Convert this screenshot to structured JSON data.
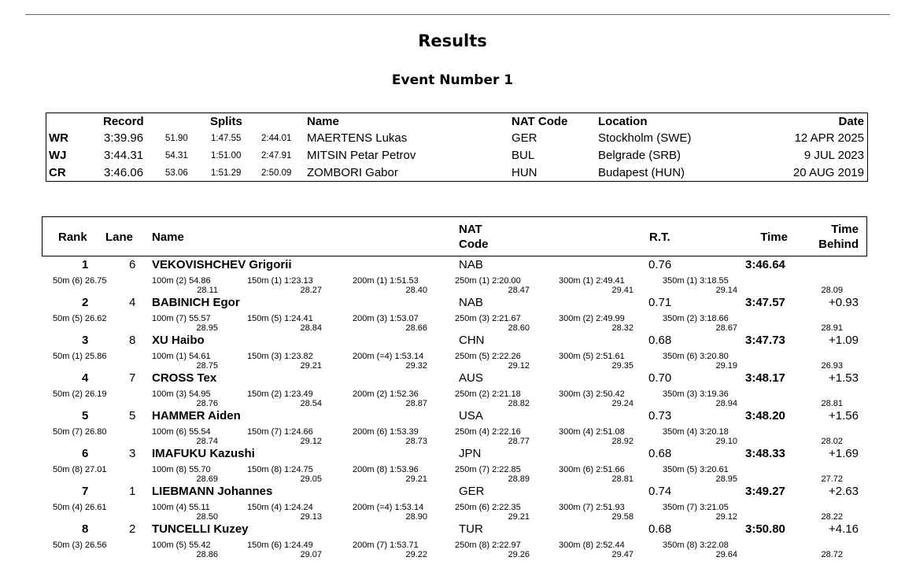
{
  "header": {
    "title": "Results",
    "event": "Event Number 1"
  },
  "records": {
    "headers": {
      "record": "Record",
      "splits": "Splits",
      "name": "Name",
      "nat": "NAT Code",
      "location": "Location",
      "date": "Date"
    },
    "rows": [
      {
        "type": "WR",
        "time": "3:39.96",
        "s1": "51.90",
        "s2": "1:47.55",
        "s3": "2:44.01",
        "name": "MAERTENS Lukas",
        "nat": "GER",
        "location": "Stockholm (SWE)",
        "date": "12 APR 2025"
      },
      {
        "type": "WJ",
        "time": "3:44.31",
        "s1": "54.31",
        "s2": "1:51.00",
        "s3": "2:47.91",
        "name": "MITSIN Petar Petrov",
        "nat": "BUL",
        "location": "Belgrade (SRB)",
        "date": "9 JUL 2023"
      },
      {
        "type": "CR",
        "time": "3:46.06",
        "s1": "53.06",
        "s2": "1:51.29",
        "s3": "2:50.09",
        "name": "ZOMBORI Gabor",
        "nat": "HUN",
        "location": "Budapest (HUN)",
        "date": "20 AUG 2019"
      }
    ]
  },
  "results": {
    "headers": {
      "rank": "Rank",
      "lane": "Lane",
      "name": "Name",
      "nat1": "NAT",
      "nat2": "Code",
      "rt": "R.T.",
      "time": "Time",
      "behind1": "Time",
      "behind2": "Behind"
    },
    "rows": [
      {
        "rank": "1",
        "lane": "6",
        "name": "VEKOVISHCHEV Grigorii",
        "nat": "NAB",
        "rt": "0.76",
        "time": "3:46.64",
        "behind": "",
        "s50": "50m  (6) 26.75",
        "s100": "100m  (2) 54.86",
        "d100": "28.11",
        "s150": "150m  (1) 1:23.13",
        "d150": "28.27",
        "s200": "200m  (1) 1:51.53",
        "d200": "28.40",
        "s250": "250m  (1) 2:20.00",
        "d250": "28.47",
        "s300": "300m  (1) 2:49.41",
        "d300": "29.41",
        "s350": "350m  (1) 3:18.55",
        "d350": "29.14",
        "d400": "28.09"
      },
      {
        "rank": "2",
        "lane": "4",
        "name": "BABINICH Egor",
        "nat": "NAB",
        "rt": "0.71",
        "time": "3:47.57",
        "behind": "+0.93",
        "s50": "50m  (5) 26.62",
        "s100": "100m  (7) 55.57",
        "d100": "28.95",
        "s150": "150m  (5) 1:24.41",
        "d150": "28.84",
        "s200": "200m  (3) 1:53.07",
        "d200": "28.66",
        "s250": "250m  (3) 2:21.67",
        "d250": "28.60",
        "s300": "300m  (2) 2:49.99",
        "d300": "28.32",
        "s350": "350m  (2) 3:18.66",
        "d350": "28.67",
        "d400": "28.91"
      },
      {
        "rank": "3",
        "lane": "8",
        "name": "XU Haibo",
        "nat": "CHN",
        "rt": "0.68",
        "time": "3:47.73",
        "behind": "+1.09",
        "s50": "50m  (1) 25.86",
        "s100": "100m  (1) 54.61",
        "d100": "28.75",
        "s150": "150m  (3) 1:23.82",
        "d150": "29.21",
        "s200": "200m  (=4) 1:53.14",
        "d200": "29.32",
        "s250": "250m  (5) 2:22.26",
        "d250": "29.12",
        "s300": "300m  (5) 2:51.61",
        "d300": "29.35",
        "s350": "350m  (6) 3:20.80",
        "d350": "29.19",
        "d400": "26.93"
      },
      {
        "rank": "4",
        "lane": "7",
        "name": "CROSS Tex",
        "nat": "AUS",
        "rt": "0.70",
        "time": "3:48.17",
        "behind": "+1.53",
        "s50": "50m  (2) 26.19",
        "s100": "100m  (3) 54.95",
        "d100": "28.76",
        "s150": "150m  (2) 1:23.49",
        "d150": "28.54",
        "s200": "200m  (2) 1:52.36",
        "d200": "28.87",
        "s250": "250m  (2) 2:21.18",
        "d250": "28.82",
        "s300": "300m  (3) 2:50.42",
        "d300": "29.24",
        "s350": "350m  (3) 3:19.36",
        "d350": "28.94",
        "d400": "28.81"
      },
      {
        "rank": "5",
        "lane": "5",
        "name": "HAMMER Aiden",
        "nat": "USA",
        "rt": "0.73",
        "time": "3:48.20",
        "behind": "+1.56",
        "s50": "50m  (7) 26.80",
        "s100": "100m  (6) 55.54",
        "d100": "28.74",
        "s150": "150m  (7) 1:24.66",
        "d150": "29.12",
        "s200": "200m  (6) 1:53.39",
        "d200": "28.73",
        "s250": "250m  (4) 2:22.16",
        "d250": "28.77",
        "s300": "300m  (4) 2:51.08",
        "d300": "28.92",
        "s350": "350m  (4) 3:20.18",
        "d350": "29.10",
        "d400": "28.02"
      },
      {
        "rank": "6",
        "lane": "3",
        "name": "IMAFUKU Kazushi",
        "nat": "JPN",
        "rt": "0.68",
        "time": "3:48.33",
        "behind": "+1.69",
        "s50": "50m  (8) 27.01",
        "s100": "100m  (8) 55.70",
        "d100": "28.69",
        "s150": "150m  (8) 1:24.75",
        "d150": "29.05",
        "s200": "200m  (8) 1:53.96",
        "d200": "29.21",
        "s250": "250m  (7) 2:22.85",
        "d250": "28.89",
        "s300": "300m  (6) 2:51.66",
        "d300": "28.81",
        "s350": "350m  (5) 3:20.61",
        "d350": "28.95",
        "d400": "27.72"
      },
      {
        "rank": "7",
        "lane": "1",
        "name": "LIEBMANN Johannes",
        "nat": "GER",
        "rt": "0.74",
        "time": "3:49.27",
        "behind": "+2.63",
        "s50": "50m  (4) 26.61",
        "s100": "100m  (4) 55.11",
        "d100": "28.50",
        "s150": "150m  (4) 1:24.24",
        "d150": "29.13",
        "s200": "200m  (=4) 1:53.14",
        "d200": "28.90",
        "s250": "250m  (6) 2:22.35",
        "d250": "29.21",
        "s300": "300m  (7) 2:51.93",
        "d300": "29.58",
        "s350": "350m  (7) 3:21.05",
        "d350": "29.12",
        "d400": "28.22"
      },
      {
        "rank": "8",
        "lane": "2",
        "name": "TUNCELLI Kuzey",
        "nat": "TUR",
        "rt": "0.68",
        "time": "3:50.80",
        "behind": "+4.16",
        "s50": "50m  (3) 26.56",
        "s100": "100m  (5) 55.42",
        "d100": "28.86",
        "s150": "150m  (6) 1:24.49",
        "d150": "29.07",
        "s200": "200m  (7) 1:53.71",
        "d200": "29.22",
        "s250": "250m  (8) 2:22.97",
        "d250": "29.26",
        "s300": "300m  (8) 2:52.44",
        "d300": "29.47",
        "s350": "350m  (8) 3:22.08",
        "d350": "29.64",
        "d400": "28.72"
      }
    ]
  }
}
